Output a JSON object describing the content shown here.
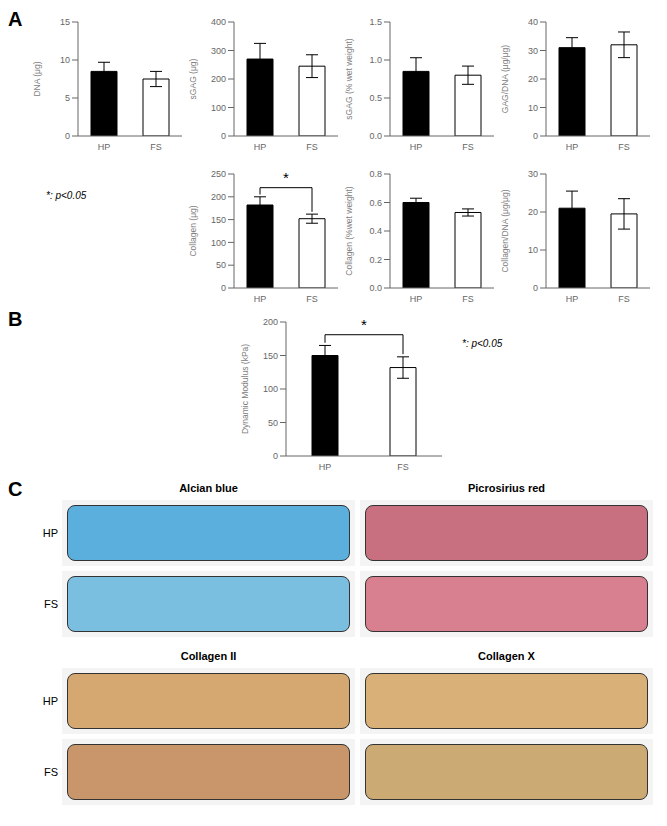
{
  "chart_data": [
    {
      "type": "bar",
      "title": "A",
      "ylabel": "DNA (μg)",
      "categories": [
        "HP",
        "FS"
      ],
      "values": [
        8.5,
        7.5
      ],
      "errors": [
        1.2,
        1.0
      ],
      "colors": [
        "#000000",
        "#ffffff"
      ],
      "ylim": [
        0,
        15
      ],
      "yticks": [
        0,
        5,
        10,
        15
      ]
    },
    {
      "type": "bar",
      "ylabel": "sGAG (μg)",
      "categories": [
        "HP",
        "FS"
      ],
      "values": [
        270,
        245
      ],
      "errors": [
        55,
        40
      ],
      "colors": [
        "#000000",
        "#ffffff"
      ],
      "ylim": [
        0,
        400
      ],
      "yticks": [
        0,
        100,
        200,
        300,
        400
      ]
    },
    {
      "type": "bar",
      "ylabel": "sGAG (% wet weight)",
      "categories": [
        "HP",
        "FS"
      ],
      "values": [
        0.85,
        0.8
      ],
      "errors": [
        0.18,
        0.12
      ],
      "colors": [
        "#000000",
        "#ffffff"
      ],
      "ylim": [
        0.0,
        1.5
      ],
      "yticks": [
        {
          "value": 0,
          "label": "0.0"
        },
        0.5,
        {
          "value": 1,
          "label": "1.0"
        },
        1.5
      ]
    },
    {
      "type": "bar",
      "ylabel": "GAG/DNA (μg/μg)",
      "categories": [
        "HP",
        "FS"
      ],
      "values": [
        31,
        32
      ],
      "errors": [
        3.5,
        4.5
      ],
      "colors": [
        "#000000",
        "#ffffff"
      ],
      "ylim": [
        0,
        40
      ],
      "yticks": [
        0,
        10,
        20,
        30,
        40
      ]
    },
    {
      "type": "bar",
      "ylabel": "Collagen (μg)",
      "categories": [
        "HP",
        "FS"
      ],
      "values": [
        182,
        152
      ],
      "errors": [
        18,
        10
      ],
      "colors": [
        "#000000",
        "#ffffff"
      ],
      "ylim": [
        0,
        250
      ],
      "yticks": [
        0,
        50,
        100,
        150,
        200,
        250
      ],
      "annotations": [
        {
          "text": "*",
          "bracket": [
            "HP",
            "FS"
          ]
        },
        {
          "text": "*: p<0.05"
        }
      ]
    },
    {
      "type": "bar",
      "ylabel": "Collagen (%wet weight)",
      "categories": [
        "HP",
        "FS"
      ],
      "values": [
        0.6,
        0.53
      ],
      "errors": [
        0.03,
        0.025
      ],
      "colors": [
        "#000000",
        "#ffffff"
      ],
      "ylim": [
        0.0,
        0.8
      ],
      "yticks": [
        {
          "value": 0,
          "label": "0.0"
        },
        0.2,
        0.4,
        0.6,
        0.8
      ]
    },
    {
      "type": "bar",
      "ylabel": "Collagen/DNA (μg/μg)",
      "categories": [
        "HP",
        "FS"
      ],
      "values": [
        21,
        19.5
      ],
      "errors": [
        4.5,
        4.0
      ],
      "colors": [
        "#000000",
        "#ffffff"
      ],
      "ylim": [
        0,
        30
      ],
      "yticks": [
        0,
        10,
        20,
        30
      ]
    },
    {
      "type": "bar",
      "title": "B",
      "ylabel": "Dynamic Modulus (kPa)",
      "categories": [
        "HP",
        "FS"
      ],
      "values": [
        150,
        132
      ],
      "errors": [
        15,
        16
      ],
      "colors": [
        "#000000",
        "#ffffff"
      ],
      "ylim": [
        0,
        200
      ],
      "yticks": [
        0,
        50,
        100,
        150,
        200
      ],
      "annotations": [
        {
          "text": "*",
          "bracket": [
            "HP",
            "FS"
          ]
        },
        {
          "text": "*: p<0.05"
        }
      ]
    },
    {
      "type": "image_grid",
      "title": "C",
      "categories": [
        "HP",
        "FS"
      ],
      "series": [
        {
          "name": "Alcian blue",
          "colors": [
            "#5aafdd",
            "#7abfe0"
          ]
        },
        {
          "name": "Picrosirius red",
          "colors": [
            "#c87080",
            "#d88090"
          ]
        }
      ]
    },
    {
      "type": "image_grid",
      "categories": [
        "HP",
        "FS"
      ],
      "series": [
        {
          "name": "Collagen II",
          "colors": [
            "#d4a870",
            "#c8966a"
          ]
        },
        {
          "name": "Collagen X",
          "colors": [
            "#d8b078",
            "#ccaa74"
          ]
        }
      ]
    }
  ]
}
